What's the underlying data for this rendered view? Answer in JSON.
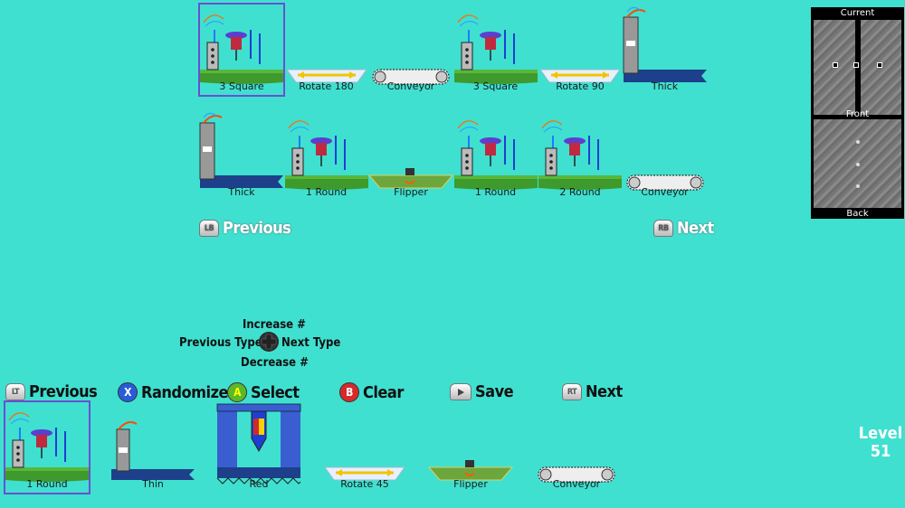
{
  "row1": [
    {
      "type": "square",
      "label": "3 Square"
    },
    {
      "type": "rotate",
      "label": "Rotate 180"
    },
    {
      "type": "conveyor",
      "label": "Conveyor"
    },
    {
      "type": "square",
      "label": "3 Square"
    },
    {
      "type": "rotate",
      "label": "Rotate 90"
    },
    {
      "type": "thick",
      "label": "Thick"
    }
  ],
  "row2": [
    {
      "type": "thick",
      "label": "Thick"
    },
    {
      "type": "round",
      "label": "1 Round"
    },
    {
      "type": "flipper",
      "label": "Flipper"
    },
    {
      "type": "round",
      "label": "1 Round"
    },
    {
      "type": "round",
      "label": "2 Round"
    },
    {
      "type": "conveyor",
      "label": "Conveyor"
    }
  ],
  "palette": [
    {
      "type": "round",
      "label": "1 Round"
    },
    {
      "type": "thin",
      "label": "Thin"
    },
    {
      "type": "red",
      "label": "Red"
    },
    {
      "type": "rotate",
      "label": "Rotate 45"
    },
    {
      "type": "flipper",
      "label": "Flipper"
    },
    {
      "type": "conveyor",
      "label": "Conveyor"
    }
  ],
  "nav": {
    "lb_badge": "LB",
    "lb_label": "Previous",
    "rb_badge": "RB",
    "rb_label": "Next"
  },
  "dpad": {
    "increase": "Increase #",
    "previous_type": "Previous Type",
    "next_type": "Next Type",
    "decrease": "Decrease #"
  },
  "controls": {
    "lt_badge": "LT",
    "previous": "Previous",
    "x_badge": "X",
    "randomize": "Randomize",
    "a_badge": "A",
    "select": "Select",
    "b_badge": "B",
    "clear": "Clear",
    "save": "Save",
    "rt_badge": "RT",
    "next": "Next"
  },
  "preview": {
    "current": "Current",
    "front": "Front",
    "back": "Back"
  },
  "level": {
    "label": "Level",
    "number": "51"
  },
  "colors": {
    "background": "#3fe0d0",
    "selection": "#6b4fd0",
    "grass": "#3e9a2c",
    "belt": "#1e3f8a"
  }
}
